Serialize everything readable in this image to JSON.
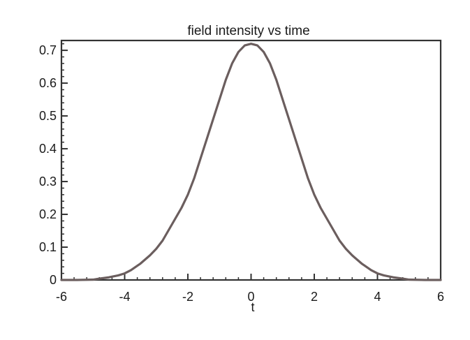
{
  "chart_data": {
    "type": "line",
    "title": "field intensity vs time",
    "xlabel": "t",
    "ylabel": "",
    "xlim": [
      -6,
      6
    ],
    "ylim": [
      0,
      0.73
    ],
    "xticks": [
      "-6",
      "-4",
      "-2",
      "0",
      "2",
      "4",
      "6"
    ],
    "yticks": [
      "0",
      "0.1",
      "0.2",
      "0.3",
      "0.4",
      "0.5",
      "0.6",
      "0.7"
    ],
    "grid": false,
    "legend": "none",
    "line_color": "#6b5e5e",
    "series": [
      {
        "x": [
          -6,
          -5.5,
          -5,
          -4.8,
          -4.5,
          -4.2,
          -4,
          -3.8,
          -3.5,
          -3.2,
          -3,
          -2.8,
          -2.5,
          -2.2,
          -2,
          -1.8,
          -1.6,
          -1.4,
          -1.2,
          -1,
          -0.8,
          -0.6,
          -0.4,
          -0.2,
          0,
          0.2,
          0.4,
          0.6,
          0.8,
          1,
          1.2,
          1.4,
          1.6,
          1.8,
          2,
          2.2,
          2.5,
          2.8,
          3,
          3.2,
          3.5,
          3.8,
          4,
          4.2,
          4.5,
          4.8,
          5,
          5.5,
          6
        ],
        "y": [
          0,
          0,
          0.001,
          0.004,
          0.008,
          0.014,
          0.02,
          0.03,
          0.05,
          0.075,
          0.095,
          0.12,
          0.17,
          0.22,
          0.26,
          0.31,
          0.37,
          0.43,
          0.49,
          0.55,
          0.61,
          0.66,
          0.695,
          0.715,
          0.72,
          0.715,
          0.695,
          0.66,
          0.61,
          0.55,
          0.49,
          0.43,
          0.37,
          0.31,
          0.26,
          0.22,
          0.17,
          0.12,
          0.095,
          0.075,
          0.05,
          0.03,
          0.02,
          0.014,
          0.008,
          0.004,
          0.001,
          0,
          0
        ]
      }
    ]
  }
}
